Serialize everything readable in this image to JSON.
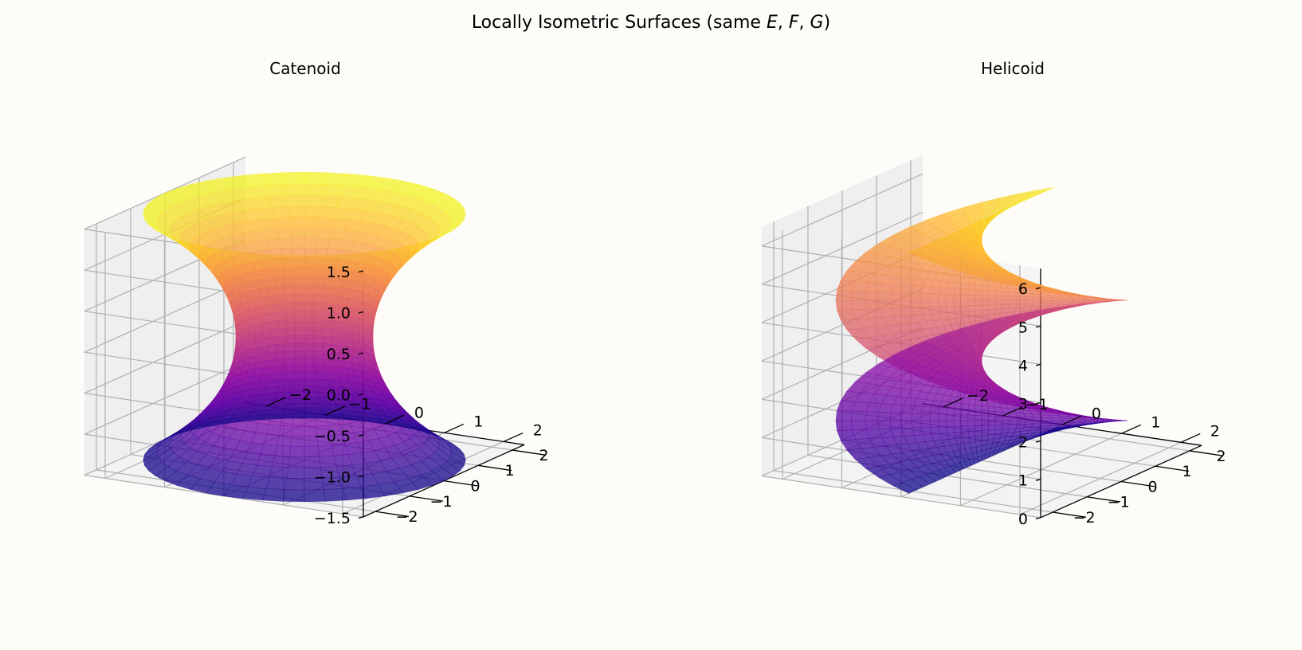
{
  "figure": {
    "title": "Locally Isometric Surfaces (same E, F, G)",
    "title_parts": {
      "prefix": "Locally Isometric Surfaces (same ",
      "vars": [
        "E",
        "F",
        "G"
      ],
      "suffix": ")"
    },
    "background": "#fdfcf9"
  },
  "chart_data": [
    {
      "type": "surface3d",
      "title": "Catenoid",
      "colormap": "plasma",
      "alpha": 0.75,
      "surface": {
        "name": "Catenoid",
        "parametrization": "x = cosh(v) cos(u), y = cosh(v) sin(u), z = v",
        "u_range": [
          0,
          6.283
        ],
        "v_range": [
          -1.5,
          1.5
        ]
      },
      "x_ticks": [
        "−2",
        "−1",
        "0",
        "1",
        "2"
      ],
      "y_ticks": [
        "−2",
        "−1",
        "0",
        "1",
        "2"
      ],
      "z_ticks": [
        "−1.5",
        "−1.0",
        "−0.5",
        "0.0",
        "0.5",
        "1.0",
        "1.5"
      ],
      "xlim": [
        -2.35,
        2.35
      ],
      "ylim": [
        -2.35,
        2.35
      ],
      "zlim": [
        -1.5,
        1.5
      ],
      "grid": true,
      "panes": {
        "back": "#f5f5f5",
        "side": "#efefef",
        "floor": "#f3f3f3"
      }
    },
    {
      "type": "surface3d",
      "title": "Helicoid",
      "colormap": "plasma",
      "alpha": 0.75,
      "surface": {
        "name": "Helicoid",
        "parametrization": "x = sinh(v) cos(u), y = sinh(v) sin(u), z = u",
        "u_range": [
          0,
          6.283
        ],
        "v_range": [
          -1.5,
          1.5
        ]
      },
      "x_ticks": [
        "−2",
        "−1",
        "0",
        "1",
        "2"
      ],
      "y_ticks": [
        "−2",
        "−1",
        "0",
        "1",
        "2"
      ],
      "z_ticks": [
        "0",
        "1",
        "2",
        "3",
        "4",
        "5",
        "6"
      ],
      "xlim": [
        -2.35,
        2.35
      ],
      "ylim": [
        -2.35,
        2.35
      ],
      "zlim": [
        0,
        6.5
      ],
      "grid": true,
      "panes": {
        "back": "#f5f5f5",
        "side": "#efefef",
        "floor": "#f3f3f3"
      }
    }
  ]
}
